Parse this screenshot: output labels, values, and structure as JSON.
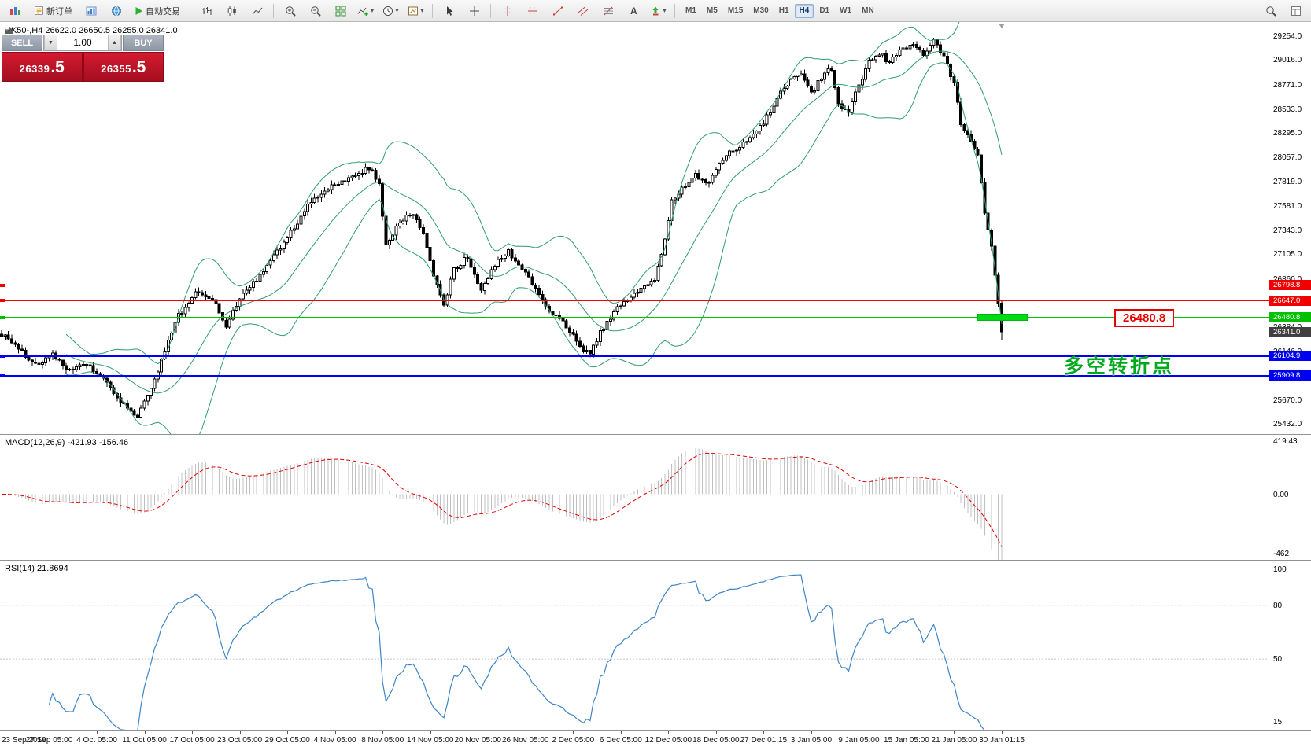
{
  "toolbar": {
    "new_order_label": "新订单",
    "autotrade_label": "自动交易",
    "timeframes": [
      "M1",
      "M5",
      "M15",
      "M30",
      "H1",
      "H4",
      "D1",
      "W1",
      "MN"
    ],
    "active_timeframe": "H4"
  },
  "trade": {
    "sell_label": "SELL",
    "buy_label": "BUY",
    "volume": "1.00",
    "sell_price": {
      "main": "26339",
      "pips": ".5"
    },
    "buy_price": {
      "main": "26355",
      "pips": ".5"
    }
  },
  "chart": {
    "header": "HK50-,H4 26622.0 26650.5 26255.0 26341.0",
    "annotation": "多空转折点",
    "annotation_color": "#00a81e",
    "annotation_anchor_price": 26104.9,
    "label_box": {
      "text": "26480.8",
      "price": 26480.8
    },
    "current_price_tag": {
      "text": "26341.0",
      "price": 26341.0,
      "color": "#404040"
    },
    "hlines": [
      {
        "price": 26798.8,
        "tag": "26798.8",
        "color": "#f00000",
        "width": 1,
        "segment": false
      },
      {
        "price": 26647.0,
        "tag": "26647.0",
        "color": "#f00000",
        "width": 1,
        "segment": false
      },
      {
        "price": 26480.8,
        "tag": "26480.8",
        "color": "#00c000",
        "width": 1,
        "segment": true
      },
      {
        "price": 26104.9,
        "tag": "26104.9",
        "color": "#0000f0",
        "width": 2,
        "segment": false
      },
      {
        "price": 25909.8,
        "tag": "25909.8",
        "color": "#0000f0",
        "width": 2,
        "segment": false
      }
    ],
    "price_axis_labels": [
      "29254.0",
      "29016.0",
      "28771.0",
      "28533.0",
      "28295.0",
      "28057.0",
      "27819.0",
      "27581.0",
      "27343.0",
      "27105.0",
      "26860.0",
      "26622.0",
      "26384.0",
      "26146.0",
      "25908.0",
      "25670.0",
      "25432.0"
    ]
  },
  "macd": {
    "header": "MACD(12,26,9) -421.93 -156.46",
    "axis_labels": [
      "419.43",
      "0.00",
      "-462"
    ]
  },
  "rsi": {
    "header": "RSI(14) 21.8694",
    "axis_labels": [
      100,
      80,
      50,
      15
    ],
    "levels": [
      80,
      50
    ]
  },
  "time_axis": [
    "23 Sep 2019",
    "27 Sep 05:00",
    "4 Oct 05:00",
    "11 Oct 05:00",
    "17 Oct 05:00",
    "23 Oct 05:00",
    "29 Oct 05:00",
    "4 Nov 05:00",
    "8 Nov 05:00",
    "14 Nov 05:00",
    "20 Nov 05:00",
    "26 Nov 05:00",
    "2 Dec 05:00",
    "6 Dec 05:00",
    "12 Dec 05:00",
    "18 Dec 05:00",
    "27 Dec 01:15",
    "3 Jan 05:00",
    "9 Jan 05:00",
    "15 Jan 05:00",
    "21 Jan 05:00",
    "30 Jan 01:15"
  ],
  "chart_data": {
    "type": "candlestick",
    "symbol": "HK50-",
    "timeframe": "H4",
    "bars": 295,
    "price_min": 25335,
    "price_max": 29390,
    "last_bar": {
      "open": 26622.0,
      "high": 26650.5,
      "low": 26255.0,
      "close": 26341.0
    },
    "close_anchors": [
      [
        0,
        26320
      ],
      [
        5,
        26180
      ],
      [
        10,
        26010
      ],
      [
        15,
        26120
      ],
      [
        20,
        25950
      ],
      [
        25,
        26030
      ],
      [
        30,
        25870
      ],
      [
        35,
        25640
      ],
      [
        40,
        25520
      ],
      [
        44,
        25760
      ],
      [
        48,
        26160
      ],
      [
        52,
        26500
      ],
      [
        57,
        26720
      ],
      [
        62,
        26660
      ],
      [
        66,
        26400
      ],
      [
        70,
        26680
      ],
      [
        76,
        26900
      ],
      [
        83,
        27220
      ],
      [
        90,
        27580
      ],
      [
        97,
        27780
      ],
      [
        104,
        27890
      ],
      [
        108,
        27950
      ],
      [
        111,
        27820
      ],
      [
        113,
        27180
      ],
      [
        117,
        27420
      ],
      [
        121,
        27520
      ],
      [
        124,
        27320
      ],
      [
        127,
        26880
      ],
      [
        130,
        26620
      ],
      [
        133,
        26950
      ],
      [
        137,
        27080
      ],
      [
        141,
        26760
      ],
      [
        145,
        27000
      ],
      [
        149,
        27140
      ],
      [
        153,
        26960
      ],
      [
        157,
        26760
      ],
      [
        161,
        26560
      ],
      [
        166,
        26400
      ],
      [
        170,
        26190
      ],
      [
        173,
        26110
      ],
      [
        176,
        26330
      ],
      [
        180,
        26540
      ],
      [
        184,
        26650
      ],
      [
        188,
        26770
      ],
      [
        192,
        26860
      ],
      [
        194,
        27080
      ],
      [
        197,
        27620
      ],
      [
        200,
        27760
      ],
      [
        204,
        27880
      ],
      [
        208,
        27810
      ],
      [
        212,
        28050
      ],
      [
        216,
        28140
      ],
      [
        220,
        28240
      ],
      [
        224,
        28390
      ],
      [
        228,
        28640
      ],
      [
        232,
        28820
      ],
      [
        235,
        28890
      ],
      [
        238,
        28690
      ],
      [
        241,
        28840
      ],
      [
        244,
        28940
      ],
      [
        246,
        28590
      ],
      [
        249,
        28490
      ],
      [
        252,
        28770
      ],
      [
        255,
        28990
      ],
      [
        258,
        29090
      ],
      [
        261,
        28990
      ],
      [
        264,
        29110
      ],
      [
        268,
        29190
      ],
      [
        271,
        29070
      ],
      [
        274,
        29240
      ],
      [
        277,
        29040
      ],
      [
        280,
        28790
      ],
      [
        282,
        28390
      ],
      [
        285,
        28240
      ],
      [
        287,
        28090
      ],
      [
        289,
        27490
      ],
      [
        291,
        27180
      ],
      [
        293,
        26650
      ],
      [
        294,
        26341
      ]
    ],
    "indicators": {
      "bollinger": {
        "period": 20,
        "deviation": 2,
        "color": "#2e9e6e"
      },
      "macd": {
        "fast": 12,
        "slow": 26,
        "signal": 9,
        "value": -421.93,
        "signal_value": -156.46,
        "scale_max": 430,
        "scale_min": -475
      },
      "rsi": {
        "period": 14,
        "value": 21.8694,
        "scale_min": 10,
        "scale_max": 105
      }
    }
  }
}
